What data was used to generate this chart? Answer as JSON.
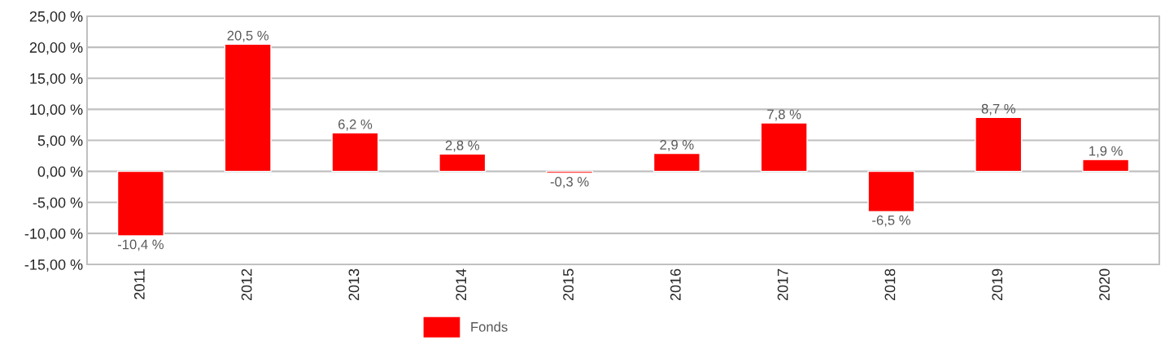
{
  "chart_data": {
    "type": "bar",
    "categories": [
      "2011",
      "2012",
      "2013",
      "2014",
      "2015",
      "2016",
      "2017",
      "2018",
      "2019",
      "2020"
    ],
    "series": [
      {
        "name": "Fonds",
        "color": "#ff0000",
        "values": [
          -10.4,
          20.5,
          6.2,
          2.8,
          -0.3,
          2.9,
          7.8,
          -6.5,
          8.7,
          1.9
        ],
        "value_labels": [
          "-10,4 %",
          "20,5 %",
          "6,2 %",
          "2,8 %",
          "-0,3 %",
          "2,9 %",
          "7,8 %",
          "-6,5 %",
          "8,7 %",
          "1,9 %"
        ]
      }
    ],
    "ylim": [
      -15,
      25
    ],
    "yticks": [
      {
        "value": -15,
        "label": "-15,00 %"
      },
      {
        "value": -10,
        "label": "-10,00 %"
      },
      {
        "value": -5,
        "label": "-5,00 %"
      },
      {
        "value": 0,
        "label": "0,00 %"
      },
      {
        "value": 5,
        "label": "5,00 %"
      },
      {
        "value": 10,
        "label": "10,00 %"
      },
      {
        "value": 15,
        "label": "15,00 %"
      },
      {
        "value": 20,
        "label": "20,00 %"
      },
      {
        "value": 25,
        "label": "25,00 %"
      }
    ],
    "grid": "y",
    "legend": "bottom"
  }
}
